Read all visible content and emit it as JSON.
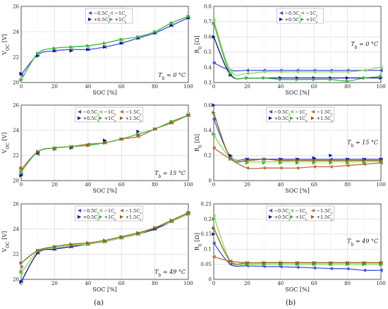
{
  "captions": [
    "(a)",
    "(b)"
  ],
  "colors": {
    "n05": "#3f51e0",
    "n1": "#8cd95a",
    "n15": "#c46a3f",
    "p05": "#0e0e9a",
    "p1": "#3bb33b",
    "p15": "#8a6a14"
  },
  "chart_data": [
    {
      "type": "scatter",
      "title": "",
      "xlabel": "SOC [%]",
      "ylabel": "V_OC [V]",
      "xlim": [
        0,
        100
      ],
      "ylim": [
        20,
        26
      ],
      "xticks": [
        0,
        20,
        40,
        60,
        80,
        100
      ],
      "yticks": [
        20,
        22,
        24,
        26
      ],
      "annotation": "T_b = 0 °C",
      "legend": [
        "−0.5C_r",
        "−1C_r",
        "+0.5C_r",
        "+1C_r"
      ],
      "grid": true,
      "x": [
        0,
        10,
        20,
        30,
        40,
        50,
        60,
        70,
        80,
        90,
        100
      ],
      "series": [
        {
          "name": "−0.5C_r",
          "color": "n05",
          "values": [
            20.6,
            22.2,
            22.5,
            22.6,
            22.6,
            22.8,
            23.1,
            23.5,
            23.9,
            24.5,
            25.1
          ]
        },
        {
          "name": "−1C_r",
          "color": "n1",
          "values": [
            20.3,
            22.2,
            22.6,
            22.7,
            22.8,
            22.9,
            23.3,
            23.6,
            24.0,
            24.6,
            25.2
          ]
        },
        {
          "name": "+0.5C_r",
          "color": "p05",
          "values": [
            20.7,
            22.1,
            22.5,
            22.5,
            22.6,
            22.8,
            23.1,
            23.5,
            23.9,
            24.5,
            25.1
          ]
        },
        {
          "name": "+1C_r",
          "color": "p1",
          "values": [
            20.2,
            22.3,
            22.7,
            22.8,
            22.9,
            23.1,
            23.4,
            23.6,
            24.0,
            24.7,
            25.2
          ]
        }
      ],
      "fit_series": [
        "n05",
        "p1"
      ]
    },
    {
      "type": "scatter",
      "title": "",
      "xlabel": "SOC [%]",
      "ylabel": "R_0 [Ω]",
      "xlim": [
        0,
        100
      ],
      "ylim": [
        0.3,
        0.8
      ],
      "xticks": [
        0,
        20,
        40,
        60,
        80,
        100
      ],
      "yticks": [
        0.3,
        0.4,
        0.5,
        0.6,
        0.7,
        0.8
      ],
      "annotation": "T_b = 0 °C",
      "legend": [
        "−0.5C_r",
        "−1C_r",
        "+0.5C_r",
        "+1C_r"
      ],
      "grid": true,
      "x": [
        0,
        10,
        20,
        30,
        40,
        50,
        60,
        70,
        80,
        90,
        100
      ],
      "series": [
        {
          "name": "−0.5C_r",
          "color": "n05",
          "values": [
            0.43,
            0.38,
            0.38,
            0.38,
            0.38,
            0.38,
            0.38,
            0.38,
            0.38,
            0.38,
            0.38
          ]
        },
        {
          "name": "−1C_r",
          "color": "n1",
          "values": [
            0.71,
            0.38,
            0.36,
            0.37,
            0.37,
            0.37,
            0.37,
            0.37,
            0.37,
            0.38,
            0.4
          ]
        },
        {
          "name": "+0.5C_r",
          "color": "p05",
          "values": [
            0.6,
            0.35,
            0.33,
            0.33,
            0.33,
            0.33,
            0.33,
            0.33,
            0.33,
            0.33,
            0.33
          ]
        },
        {
          "name": "+1C_r",
          "color": "p1",
          "values": [
            0.69,
            0.36,
            0.33,
            0.33,
            0.32,
            0.32,
            0.32,
            0.32,
            0.31,
            0.33,
            0.34
          ]
        }
      ],
      "fit_series": [
        "n05",
        "n1",
        "p05",
        "p1"
      ]
    },
    {
      "type": "scatter",
      "title": "",
      "xlabel": "SOC [%]",
      "ylabel": "V_OC [V]",
      "xlim": [
        0,
        100
      ],
      "ylim": [
        20,
        26
      ],
      "xticks": [
        0,
        20,
        40,
        60,
        80,
        100
      ],
      "yticks": [
        20,
        22,
        24,
        26
      ],
      "annotation": "T_b = 15 °C",
      "legend": [
        "−0.5C_r",
        "−1C_r",
        "−1.5C_r",
        "+0.5C_r",
        "+1C_r",
        "+1.5C_r"
      ],
      "grid": true,
      "x": [
        0,
        10,
        20,
        30,
        40,
        50,
        60,
        70,
        80,
        90,
        100
      ],
      "series": [
        {
          "name": "−0.5C_r",
          "color": "n05",
          "values": [
            20.5,
            22.1,
            22.5,
            22.7,
            22.8,
            23.1,
            23.3,
            23.6,
            24.1,
            24.6,
            25.2
          ]
        },
        {
          "name": "−1C_r",
          "color": "n1",
          "values": [
            20.8,
            22.2,
            22.5,
            22.6,
            22.8,
            23.0,
            23.3,
            23.6,
            24.1,
            24.7,
            25.3
          ]
        },
        {
          "name": "−1.5C_r",
          "color": "n15",
          "values": [
            20.9,
            22.3,
            22.6,
            22.7,
            22.9,
            23.0,
            23.3,
            23.5,
            24.1,
            24.6,
            25.2
          ]
        },
        {
          "name": "+0.5C_r",
          "color": "p05",
          "values": [
            20.4,
            22.2,
            22.5,
            22.6,
            22.8,
            23.2,
            23.3,
            23.9,
            24.1,
            24.6,
            25.2
          ]
        },
        {
          "name": "+1C_r",
          "color": "p1",
          "values": [
            20.7,
            22.3,
            22.6,
            22.7,
            22.8,
            23.0,
            23.3,
            23.7,
            24.1,
            24.7,
            25.2
          ]
        },
        {
          "name": "+1.5C_r",
          "color": "p15",
          "values": [
            21.0,
            22.3,
            22.5,
            22.7,
            22.8,
            23.0,
            23.3,
            23.6,
            24.1,
            24.6,
            25.2
          ]
        }
      ],
      "fit_series": [
        "n15",
        "p1"
      ]
    },
    {
      "type": "scatter",
      "title": "",
      "xlabel": "SOC [%]",
      "ylabel": "R_0 [Ω]",
      "xlim": [
        0,
        100
      ],
      "ylim": [
        0,
        0.6
      ],
      "xticks": [
        0,
        20,
        40,
        60,
        80,
        100
      ],
      "yticks": [
        0,
        0.2,
        0.4,
        0.6
      ],
      "annotation": "T_b = 15 °C",
      "legend": [
        "−0.5C_r",
        "−1C_r",
        "−1.5C_r",
        "+0.5C_r",
        "+1C_r",
        "+1.5C_r"
      ],
      "grid": true,
      "x": [
        0,
        10,
        20,
        30,
        40,
        50,
        60,
        70,
        80,
        90,
        100
      ],
      "series": [
        {
          "name": "−0.5C_r",
          "color": "n05",
          "values": [
            0.49,
            0.19,
            0.17,
            0.17,
            0.17,
            0.17,
            0.17,
            0.17,
            0.17,
            0.17,
            0.17
          ]
        },
        {
          "name": "−1C_r",
          "color": "n1",
          "values": [
            0.36,
            0.18,
            0.15,
            0.15,
            0.15,
            0.15,
            0.15,
            0.15,
            0.15,
            0.15,
            0.15
          ]
        },
        {
          "name": "−1.5C_r",
          "color": "n15",
          "values": [
            0.26,
            0.17,
            0.1,
            0.1,
            0.1,
            0.1,
            0.11,
            0.11,
            0.12,
            0.13,
            0.14
          ]
        },
        {
          "name": "+0.5C_r",
          "color": "p05",
          "values": [
            0.6,
            0.2,
            0.17,
            0.17,
            0.17,
            0.17,
            0.18,
            0.2,
            0.17,
            0.17,
            0.17
          ]
        },
        {
          "name": "+1C_r",
          "color": "p1",
          "values": [
            0.37,
            0.17,
            0.14,
            0.14,
            0.14,
            0.14,
            0.14,
            0.14,
            0.14,
            0.14,
            0.15
          ]
        },
        {
          "name": "+1.5C_r",
          "color": "p15",
          "values": [
            0.54,
            0.18,
            0.16,
            0.17,
            0.16,
            0.16,
            0.16,
            0.16,
            0.16,
            0.16,
            0.16
          ]
        }
      ],
      "fit_series": [
        "n05",
        "n1",
        "n15",
        "p15"
      ]
    },
    {
      "type": "scatter",
      "title": "",
      "xlabel": "SOC [%]",
      "ylabel": "V_OC [V]",
      "xlim": [
        0,
        100
      ],
      "ylim": [
        20,
        26
      ],
      "xticks": [
        0,
        20,
        40,
        60,
        80,
        100
      ],
      "yticks": [
        20,
        22,
        24,
        26
      ],
      "annotation": "T_b = 49 °C",
      "legend": [
        "−0.5C_r",
        "−1C_r",
        "−1.5C_r",
        "+0.5C_r",
        "+1C_r",
        "+1.5C_r"
      ],
      "grid": true,
      "x": [
        0,
        10,
        20,
        30,
        40,
        50,
        60,
        70,
        80,
        90,
        100
      ],
      "series": [
        {
          "name": "−0.5C_r",
          "color": "n05",
          "values": [
            19.9,
            22.1,
            22.4,
            22.6,
            22.8,
            23.0,
            23.3,
            23.6,
            24.0,
            24.6,
            25.2
          ]
        },
        {
          "name": "−1C_r",
          "color": "n1",
          "values": [
            20.5,
            22.2,
            22.5,
            22.7,
            22.8,
            23.0,
            23.3,
            23.6,
            24.1,
            24.6,
            25.2
          ]
        },
        {
          "name": "−1.5C_r",
          "color": "n15",
          "values": [
            21.0,
            22.3,
            22.6,
            22.7,
            22.8,
            23.0,
            23.3,
            23.6,
            24.1,
            24.6,
            25.3
          ]
        },
        {
          "name": "+0.5C_r",
          "color": "p05",
          "values": [
            19.8,
            22.1,
            22.4,
            22.6,
            22.8,
            23.0,
            23.3,
            23.6,
            24.0,
            24.6,
            25.2
          ]
        },
        {
          "name": "+1C_r",
          "color": "p1",
          "values": [
            20.6,
            22.2,
            22.5,
            22.7,
            22.8,
            23.0,
            23.3,
            23.6,
            24.1,
            24.6,
            25.2
          ]
        },
        {
          "name": "+1.5C_r",
          "color": "p15",
          "values": [
            21.3,
            22.3,
            22.6,
            22.8,
            22.9,
            23.1,
            23.4,
            23.7,
            24.1,
            24.7,
            25.3
          ]
        }
      ],
      "fit_series": [
        "p05",
        "n1",
        "p15"
      ]
    },
    {
      "type": "scatter",
      "title": "",
      "xlabel": "SOC [%]",
      "ylabel": "R_0 [Ω]",
      "xlim": [
        0,
        100
      ],
      "ylim": [
        0,
        0.25
      ],
      "xticks": [
        0,
        20,
        40,
        60,
        80,
        100
      ],
      "yticks": [
        0,
        0.05,
        0.1,
        0.15,
        0.2,
        0.25
      ],
      "annotation": "T_b = 49 °C",
      "legend": [
        "−0.5C_r",
        "−1C_r",
        "−1.5C_r",
        "+0.5C_r",
        "+1C_r",
        "+1.5C_r"
      ],
      "grid": true,
      "x": [
        0,
        10,
        20,
        30,
        40,
        50,
        60,
        70,
        80,
        90,
        100
      ],
      "series": [
        {
          "name": "−0.5C_r",
          "color": "n05",
          "values": [
            0.12,
            0.05,
            0.045,
            0.043,
            0.042,
            0.04,
            0.038,
            0.036,
            0.035,
            0.03,
            0.03
          ]
        },
        {
          "name": "−1C_r",
          "color": "n1",
          "values": [
            0.21,
            0.06,
            0.05,
            0.05,
            0.05,
            0.05,
            0.05,
            0.05,
            0.05,
            0.05,
            0.05
          ]
        },
        {
          "name": "−1.5C_r",
          "color": "n15",
          "values": [
            0.075,
            0.06,
            0.055,
            0.055,
            0.055,
            0.055,
            0.055,
            0.055,
            0.055,
            0.055,
            0.055
          ]
        },
        {
          "name": "+0.5C_r",
          "color": "p05",
          "values": [
            0.15,
            0.06,
            0.05,
            0.05,
            0.05,
            0.05,
            0.05,
            0.05,
            0.05,
            0.05,
            0.05
          ]
        },
        {
          "name": "+1C_r",
          "color": "p1",
          "values": [
            0.2,
            0.06,
            0.05,
            0.05,
            0.05,
            0.05,
            0.05,
            0.05,
            0.05,
            0.05,
            0.05
          ]
        },
        {
          "name": "+1.5C_r",
          "color": "p15",
          "values": [
            0.17,
            0.06,
            0.055,
            0.055,
            0.055,
            0.055,
            0.055,
            0.055,
            0.055,
            0.055,
            0.055
          ]
        }
      ],
      "fit_series": [
        "n05",
        "n1",
        "n15",
        "p15"
      ]
    }
  ]
}
